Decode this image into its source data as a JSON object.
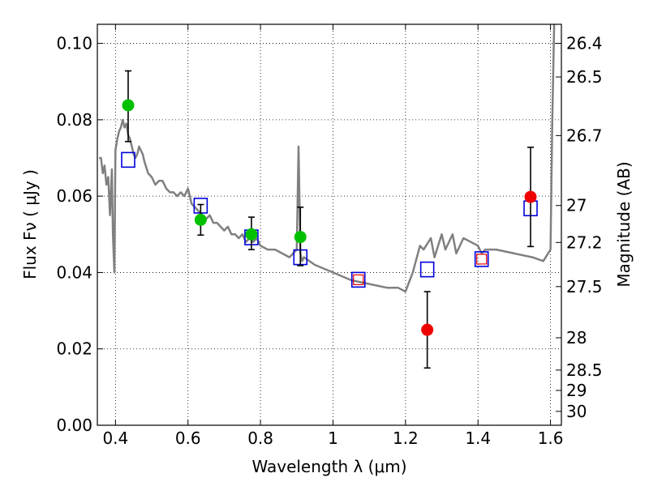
{
  "chart_data": {
    "type": "scatter",
    "xlabel": "Wavelength  λ (μm)",
    "ylabel": "Flux  Fν  ( μJy )",
    "y2label": "Magnitude (AB)",
    "xlim": [
      0.35,
      1.63
    ],
    "ylim": [
      0.0,
      0.105
    ],
    "grid": true,
    "x_ticks": [
      0.4,
      0.6,
      0.8,
      1.0,
      1.2,
      1.4,
      1.6
    ],
    "x_tick_labels": [
      "0.4",
      "0.6",
      "0.8",
      "1",
      "1.2",
      "1.4",
      "1.6"
    ],
    "y_ticks": [
      0.0,
      0.02,
      0.04,
      0.06,
      0.08,
      0.1
    ],
    "y_tick_labels": [
      "0.00",
      "0.02",
      "0.04",
      "0.06",
      "0.08",
      "0.10"
    ],
    "mag_ticks": [
      26.4,
      26.5,
      26.7,
      27.0,
      27.2,
      27.5,
      28.0,
      28.5,
      29.0,
      30.0
    ],
    "mag_tick_labels": [
      "26.4",
      "26.5",
      "26.7",
      "27",
      "27.2",
      "27.5",
      "28",
      "28.5",
      "29",
      "30"
    ],
    "series": [
      {
        "kind": "line",
        "color": "#808080",
        "x": [
          0.355,
          0.36,
          0.365,
          0.37,
          0.375,
          0.38,
          0.385,
          0.39,
          0.393,
          0.397,
          0.4,
          0.405,
          0.41,
          0.415,
          0.42,
          0.425,
          0.43,
          0.435,
          0.44,
          0.445,
          0.45,
          0.455,
          0.46,
          0.465,
          0.47,
          0.475,
          0.48,
          0.49,
          0.5,
          0.51,
          0.52,
          0.53,
          0.54,
          0.55,
          0.56,
          0.57,
          0.58,
          0.59,
          0.6,
          0.61,
          0.62,
          0.63,
          0.64,
          0.65,
          0.66,
          0.67,
          0.68,
          0.69,
          0.7,
          0.71,
          0.72,
          0.73,
          0.74,
          0.75,
          0.76,
          0.77,
          0.78,
          0.79,
          0.8,
          0.82,
          0.84,
          0.86,
          0.88,
          0.9,
          0.905,
          0.91,
          0.915,
          0.92,
          0.95,
          1.0,
          1.05,
          1.1,
          1.15,
          1.18,
          1.2,
          1.22,
          1.24,
          1.25,
          1.27,
          1.28,
          1.3,
          1.31,
          1.33,
          1.34,
          1.36,
          1.38,
          1.4,
          1.41,
          1.42,
          1.45,
          1.5,
          1.55,
          1.58,
          1.6,
          1.605,
          1.61
        ],
        "y": [
          0.07,
          0.07,
          0.066,
          0.068,
          0.063,
          0.065,
          0.055,
          0.067,
          0.05,
          0.04,
          0.072,
          0.075,
          0.077,
          0.078,
          0.08,
          0.078,
          0.079,
          0.076,
          0.075,
          0.073,
          0.071,
          0.07,
          0.071,
          0.073,
          0.072,
          0.071,
          0.069,
          0.066,
          0.065,
          0.063,
          0.064,
          0.064,
          0.062,
          0.061,
          0.061,
          0.06,
          0.061,
          0.06,
          0.062,
          0.058,
          0.057,
          0.056,
          0.055,
          0.054,
          0.055,
          0.053,
          0.053,
          0.052,
          0.051,
          0.052,
          0.05,
          0.05,
          0.049,
          0.05,
          0.048,
          0.049,
          0.048,
          0.049,
          0.047,
          0.046,
          0.046,
          0.045,
          0.044,
          0.046,
          0.073,
          0.045,
          0.043,
          0.044,
          0.042,
          0.04,
          0.038,
          0.037,
          0.036,
          0.036,
          0.035,
          0.04,
          0.047,
          0.046,
          0.049,
          0.044,
          0.05,
          0.046,
          0.05,
          0.045,
          0.049,
          0.048,
          0.047,
          0.045,
          0.046,
          0.046,
          0.045,
          0.044,
          0.043,
          0.046,
          0.08,
          0.105
        ]
      },
      {
        "kind": "open-square",
        "color": "#0000dd",
        "x": [
          0.435,
          0.635,
          0.775,
          0.91,
          1.07,
          1.26,
          1.41,
          1.545
        ],
        "y": [
          0.0695,
          0.0575,
          0.0492,
          0.044,
          0.0381,
          0.0408,
          0.0435,
          0.0568
        ]
      },
      {
        "kind": "point-errorbar",
        "color": "#00c000",
        "x": [
          0.435,
          0.635,
          0.775,
          0.91
        ],
        "y": [
          0.0838,
          0.0538,
          0.05,
          0.0493
        ],
        "err_low": [
          0.0095,
          0.004,
          0.004,
          0.0075
        ],
        "err_high": [
          0.009,
          0.004,
          0.0045,
          0.0078
        ]
      },
      {
        "kind": "point-errorbar",
        "color": "#ee0000",
        "x": [
          1.26,
          1.545
        ],
        "y": [
          0.025,
          0.0598
        ],
        "err_low": [
          0.01,
          0.013
        ],
        "err_high": [
          0.01,
          0.013
        ]
      },
      {
        "kind": "small-open-square",
        "color": "#ee0000",
        "x": [
          1.07,
          1.41
        ],
        "y": [
          0.0381,
          0.0435
        ]
      }
    ]
  }
}
